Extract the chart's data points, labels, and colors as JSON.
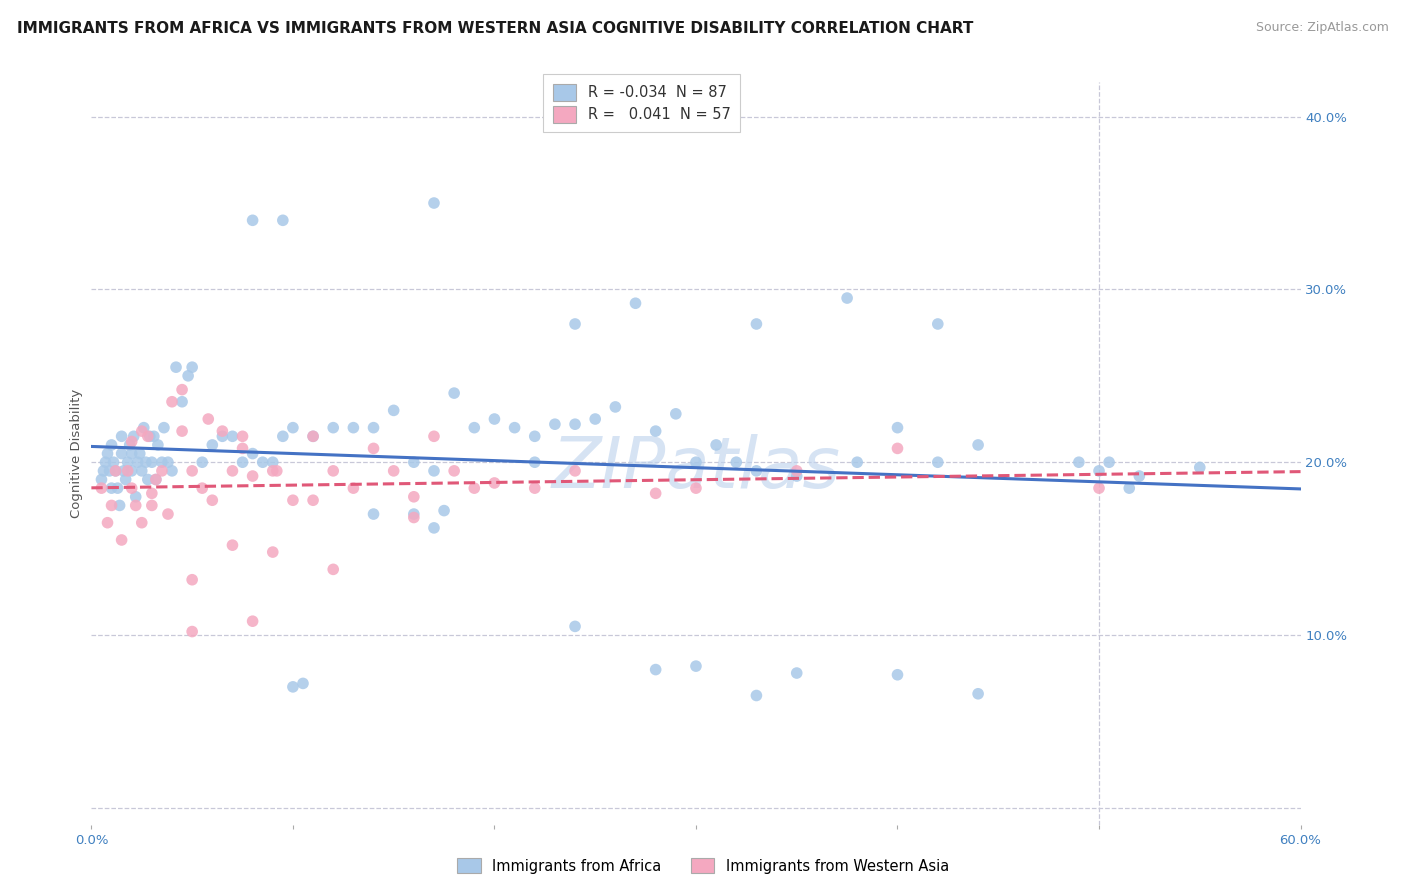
{
  "title": "IMMIGRANTS FROM AFRICA VS IMMIGRANTS FROM WESTERN ASIA COGNITIVE DISABILITY CORRELATION CHART",
  "source": "Source: ZipAtlas.com",
  "ylabel": "Cognitive Disability",
  "ytick_positions": [
    0.0,
    0.1,
    0.2,
    0.3,
    0.4
  ],
  "ytick_labels": [
    "",
    "10.0%",
    "20.0%",
    "30.0%",
    "40.0%"
  ],
  "xtick_positions": [
    0.0,
    0.1,
    0.2,
    0.3,
    0.4,
    0.5,
    0.6
  ],
  "xtick_labels": [
    "0.0%",
    "",
    "",
    "",
    "",
    "",
    "60.0%"
  ],
  "xlim": [
    0.0,
    0.6
  ],
  "ylim": [
    -0.01,
    0.42
  ],
  "r_africa": -0.034,
  "n_africa": 87,
  "r_western_asia": 0.041,
  "n_western_asia": 57,
  "color_africa": "#a8c8e8",
  "color_western_asia": "#f4a8c0",
  "trendline_africa_color": "#4472c4",
  "trendline_western_asia_color": "#e05878",
  "background_color": "#ffffff",
  "grid_color": "#c8c8d8",
  "watermark_color": "#c0d4ee",
  "watermark_text": "ZIPatlas",
  "africa_x": [
    0.005,
    0.006,
    0.007,
    0.008,
    0.009,
    0.01,
    0.01,
    0.011,
    0.012,
    0.013,
    0.014,
    0.015,
    0.015,
    0.016,
    0.017,
    0.018,
    0.019,
    0.02,
    0.02,
    0.021,
    0.022,
    0.023,
    0.024,
    0.025,
    0.026,
    0.027,
    0.028,
    0.029,
    0.03,
    0.031,
    0.032,
    0.033,
    0.035,
    0.036,
    0.038,
    0.04,
    0.042,
    0.045,
    0.048,
    0.05,
    0.055,
    0.06,
    0.065,
    0.07,
    0.075,
    0.08,
    0.085,
    0.09,
    0.095,
    0.1,
    0.11,
    0.12,
    0.13,
    0.14,
    0.15,
    0.16,
    0.17,
    0.18,
    0.19,
    0.2,
    0.21,
    0.22,
    0.23,
    0.24,
    0.25,
    0.26,
    0.27,
    0.28,
    0.29,
    0.3,
    0.31,
    0.32,
    0.33,
    0.35,
    0.38,
    0.4,
    0.42,
    0.44,
    0.5,
    0.52,
    0.55,
    0.14,
    0.17,
    0.22,
    0.28,
    0.3,
    0.35
  ],
  "africa_y": [
    0.19,
    0.195,
    0.2,
    0.205,
    0.195,
    0.185,
    0.21,
    0.2,
    0.195,
    0.185,
    0.175,
    0.215,
    0.205,
    0.195,
    0.19,
    0.2,
    0.21,
    0.195,
    0.205,
    0.215,
    0.18,
    0.2,
    0.205,
    0.195,
    0.22,
    0.2,
    0.19,
    0.215,
    0.2,
    0.215,
    0.19,
    0.21,
    0.2,
    0.22,
    0.2,
    0.195,
    0.255,
    0.235,
    0.25,
    0.255,
    0.2,
    0.21,
    0.215,
    0.215,
    0.2,
    0.205,
    0.2,
    0.2,
    0.215,
    0.22,
    0.215,
    0.22,
    0.22,
    0.22,
    0.23,
    0.2,
    0.195,
    0.24,
    0.22,
    0.225,
    0.22,
    0.215,
    0.222,
    0.222,
    0.225,
    0.232,
    0.292,
    0.218,
    0.228,
    0.2,
    0.21,
    0.2,
    0.195,
    0.192,
    0.2,
    0.22,
    0.2,
    0.21,
    0.195,
    0.192,
    0.197,
    0.17,
    0.162,
    0.2,
    0.08,
    0.082,
    0.078
  ],
  "africa_x_outliers": [
    0.24,
    0.33,
    0.42,
    0.375,
    0.49,
    0.505,
    0.515,
    0.17,
    0.08,
    0.095,
    0.16,
    0.175
  ],
  "africa_y_outliers": [
    0.28,
    0.28,
    0.28,
    0.295,
    0.2,
    0.2,
    0.185,
    0.35,
    0.34,
    0.34,
    0.17,
    0.172
  ],
  "africa_x_low": [
    0.24,
    0.33,
    0.44,
    0.4,
    0.1,
    0.105
  ],
  "africa_y_low": [
    0.105,
    0.065,
    0.066,
    0.077,
    0.07,
    0.072
  ],
  "western_asia_x": [
    0.005,
    0.008,
    0.01,
    0.012,
    0.015,
    0.018,
    0.02,
    0.022,
    0.025,
    0.028,
    0.03,
    0.032,
    0.035,
    0.038,
    0.04,
    0.045,
    0.05,
    0.055,
    0.06,
    0.065,
    0.07,
    0.075,
    0.08,
    0.09,
    0.1,
    0.11,
    0.12,
    0.13,
    0.14,
    0.15,
    0.16,
    0.17,
    0.18,
    0.19,
    0.2,
    0.22,
    0.24,
    0.28,
    0.3,
    0.35,
    0.4,
    0.5,
    0.05,
    0.07,
    0.09,
    0.12,
    0.16,
    0.05,
    0.08,
    0.02,
    0.025,
    0.03,
    0.045,
    0.058,
    0.075,
    0.092,
    0.11
  ],
  "western_asia_y": [
    0.185,
    0.165,
    0.175,
    0.195,
    0.155,
    0.195,
    0.185,
    0.175,
    0.165,
    0.215,
    0.175,
    0.19,
    0.195,
    0.17,
    0.235,
    0.242,
    0.195,
    0.185,
    0.178,
    0.218,
    0.195,
    0.208,
    0.192,
    0.195,
    0.178,
    0.215,
    0.195,
    0.185,
    0.208,
    0.195,
    0.18,
    0.215,
    0.195,
    0.185,
    0.188,
    0.185,
    0.195,
    0.182,
    0.185,
    0.195,
    0.208,
    0.185,
    0.132,
    0.152,
    0.148,
    0.138,
    0.168,
    0.102,
    0.108,
    0.212,
    0.218,
    0.182,
    0.218,
    0.225,
    0.215,
    0.195,
    0.178
  ],
  "title_fontsize": 11,
  "axis_label_fontsize": 9.5,
  "tick_fontsize": 9.5,
  "source_fontsize": 9
}
